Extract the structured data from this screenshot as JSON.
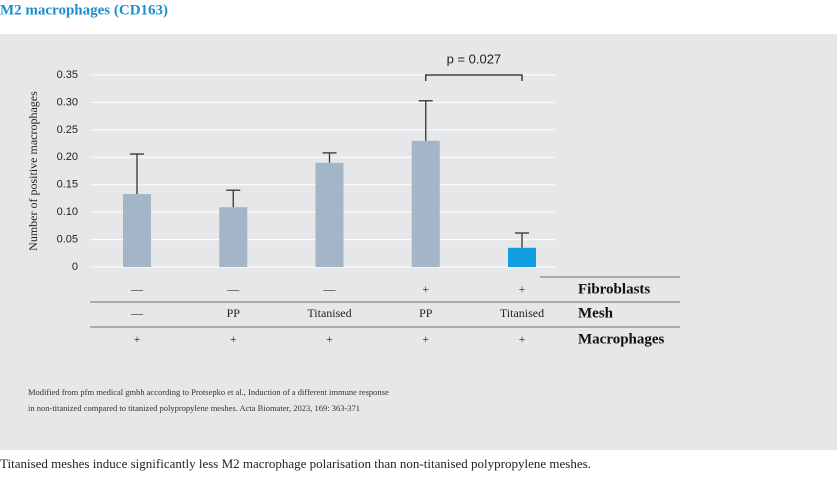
{
  "chart_data": {
    "type": "bar",
    "title": "M2 macrophages (CD163)",
    "y_label": "Number of positive macrophages",
    "categories": [
      null,
      null,
      null,
      null,
      null
    ],
    "values": [
      0.133,
      0.109,
      0.19,
      0.23,
      0.035
    ],
    "errors": [
      0.073,
      0.031,
      0.018,
      0.073,
      0.027
    ],
    "colors": [
      "#a3b6c8",
      "#a3b6c8",
      "#a3b6c8",
      "#a3b6c8",
      "#119fe0"
    ],
    "ylim": [
      0,
      0.35
    ],
    "yticks": [
      0,
      0.05,
      {
        "value": 0.1,
        "label": "0.10"
      },
      0.15,
      {
        "value": 0.2,
        "label": "0.20"
      },
      0.25,
      {
        "value": 0.3,
        "label": "0.30"
      },
      0.35
    ],
    "grid": true,
    "annotation": "p = 0.027",
    "condition_table": [
      {
        "label": "Fibroblasts",
        "cells": [
          "—",
          "—",
          "—",
          "+",
          "+"
        ]
      },
      {
        "label": "Mesh",
        "cells": [
          "—",
          "PP",
          "Titanised",
          "PP",
          "Titanised"
        ]
      },
      {
        "label": "Macrophages",
        "cells": [
          "+",
          "+",
          "+",
          "+",
          "+"
        ]
      }
    ]
  },
  "source": [
    "Modified from pfm medical gmbh according to Protsepko et al., Induction of a different immune response",
    "in non-titanized compared to titanized polypropylene meshes. Acta Biomater, 2023, 169: 363-371"
  ],
  "caption": "Titanised meshes induce significantly less M2 macrophage polarisation than non-titanised polypropylene meshes."
}
